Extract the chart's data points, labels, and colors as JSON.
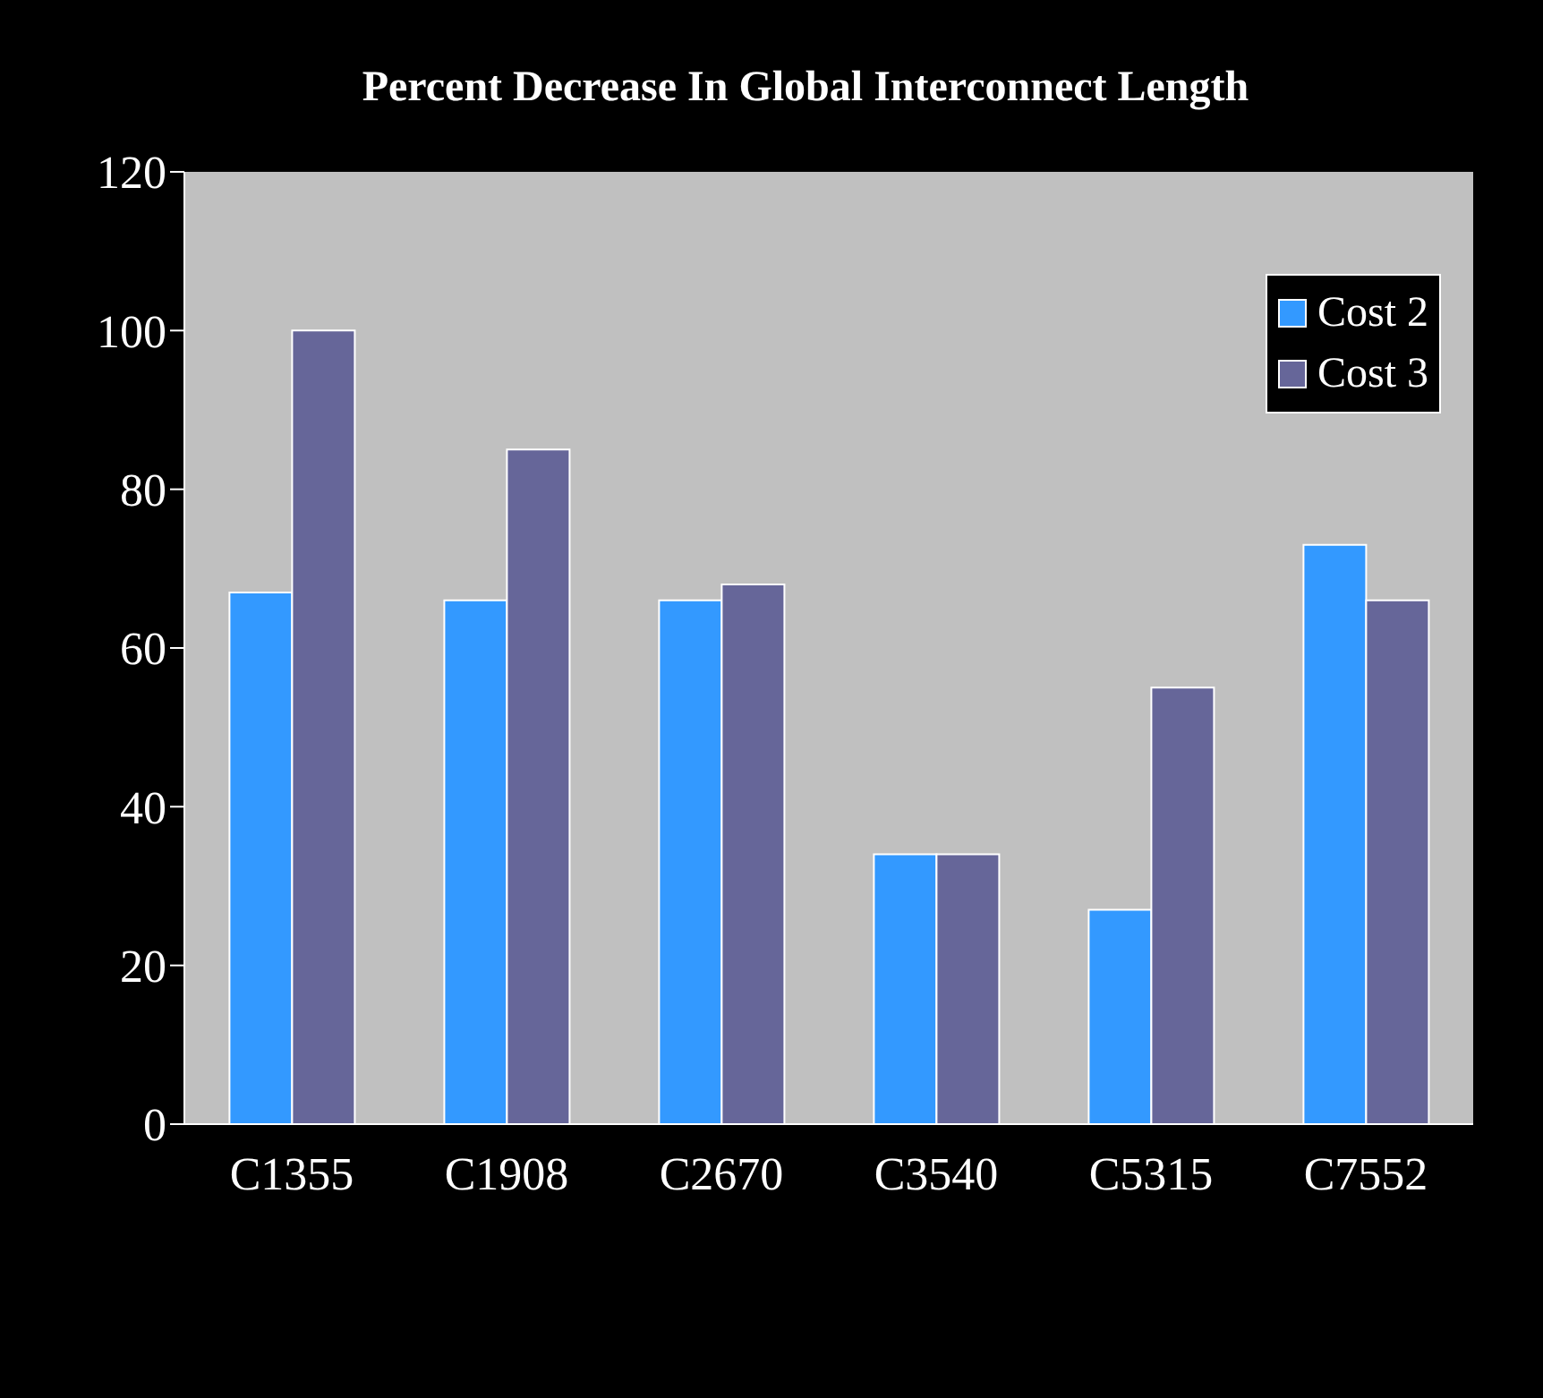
{
  "chart_data": {
    "type": "bar",
    "title": "Percent Decrease In Global Interconnect Length",
    "categories": [
      "C1355",
      "C1908",
      "C2670",
      "C3540",
      "C5315",
      "C7552"
    ],
    "series": [
      {
        "name": "Cost 2",
        "color": "#3399ff",
        "values": [
          67,
          66,
          66,
          34,
          27,
          73
        ]
      },
      {
        "name": "Cost 3",
        "color": "#666699",
        "values": [
          100,
          85,
          68,
          34,
          55,
          66
        ]
      }
    ],
    "ylim": [
      0,
      120
    ],
    "yticks": [
      0,
      20,
      40,
      60,
      80,
      100,
      120
    ],
    "legend": "top right"
  }
}
